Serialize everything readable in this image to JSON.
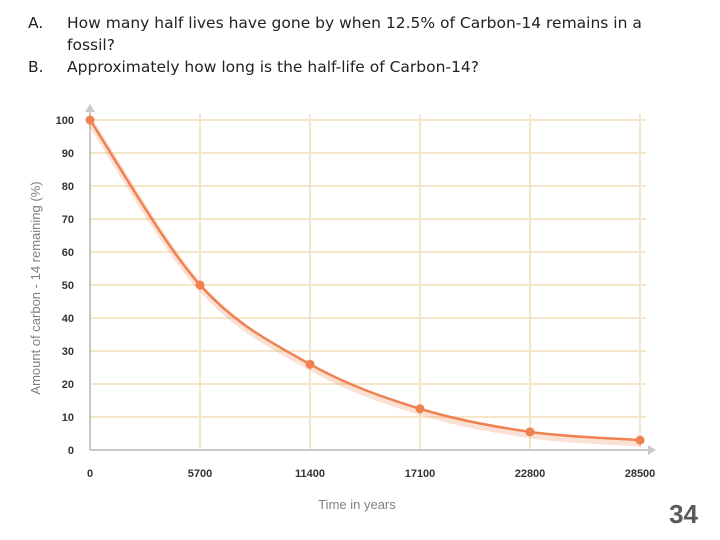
{
  "questions": [
    {
      "letter": "A.",
      "text": "How many half lives have gone by when 12.5% of Carbon-14 remains in a fossil?"
    },
    {
      "letter": "B.",
      "text": "Approximately how long is the half-life of Carbon-14?"
    }
  ],
  "slide_number": "34",
  "colors": {
    "curve": "#ef8252",
    "grid": "#f3e6c9",
    "axis": "#c9c9c9"
  },
  "chart_data": {
    "type": "line",
    "title": "",
    "xlabel": "Time in years",
    "ylabel": "Amount of carbon - 14 remaining   (%)",
    "x_ticks": [
      0,
      5700,
      11400,
      17100,
      22800,
      28500
    ],
    "y_ticks": [
      0,
      10,
      20,
      30,
      40,
      50,
      60,
      70,
      80,
      90,
      100
    ],
    "xlim": [
      0,
      28500
    ],
    "ylim": [
      0,
      100
    ],
    "grid": true,
    "series": [
      {
        "x": [
          0,
          5700,
          11400,
          17100,
          22800,
          28500
        ],
        "y": [
          100,
          50,
          26,
          12.5,
          5.5,
          3
        ]
      }
    ]
  }
}
